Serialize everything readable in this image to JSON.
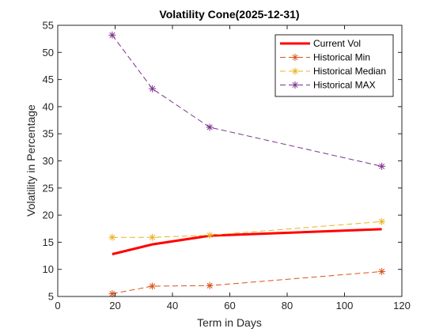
{
  "chart_data": {
    "type": "line",
    "title": "Volatility Cone(2025-12-31)",
    "xlabel": "Term in Days",
    "ylabel": "Volatility in Percentage",
    "xlim": [
      0,
      120
    ],
    "ylim": [
      5,
      55
    ],
    "xticks": [
      0,
      20,
      40,
      60,
      80,
      100,
      120
    ],
    "yticks": [
      5,
      10,
      15,
      20,
      25,
      30,
      35,
      40,
      45,
      50,
      55
    ],
    "grid": false,
    "legend_position": "top-right",
    "series": [
      {
        "name": "Current Vol",
        "color": "#ff0000",
        "line": "solid",
        "marker": "none",
        "x": [
          19,
          33,
          53,
          113
        ],
        "y": [
          12.8,
          14.6,
          16.2,
          17.4
        ]
      },
      {
        "name": "Historical Min",
        "color": "#d95319",
        "line": "dashed",
        "marker": "asterisk",
        "x": [
          19,
          33,
          53,
          113
        ],
        "y": [
          5.5,
          6.9,
          7.0,
          9.6
        ]
      },
      {
        "name": "Historical Median",
        "color": "#edb120",
        "line": "dashed",
        "marker": "asterisk",
        "x": [
          19,
          33,
          53,
          113
        ],
        "y": [
          15.9,
          15.9,
          16.3,
          18.8
        ]
      },
      {
        "name": "Historical MAX",
        "color": "#7e2f8e",
        "line": "dashed",
        "marker": "asterisk",
        "x": [
          19,
          33,
          53,
          113
        ],
        "y": [
          53.2,
          43.3,
          36.2,
          29.0
        ]
      }
    ]
  }
}
